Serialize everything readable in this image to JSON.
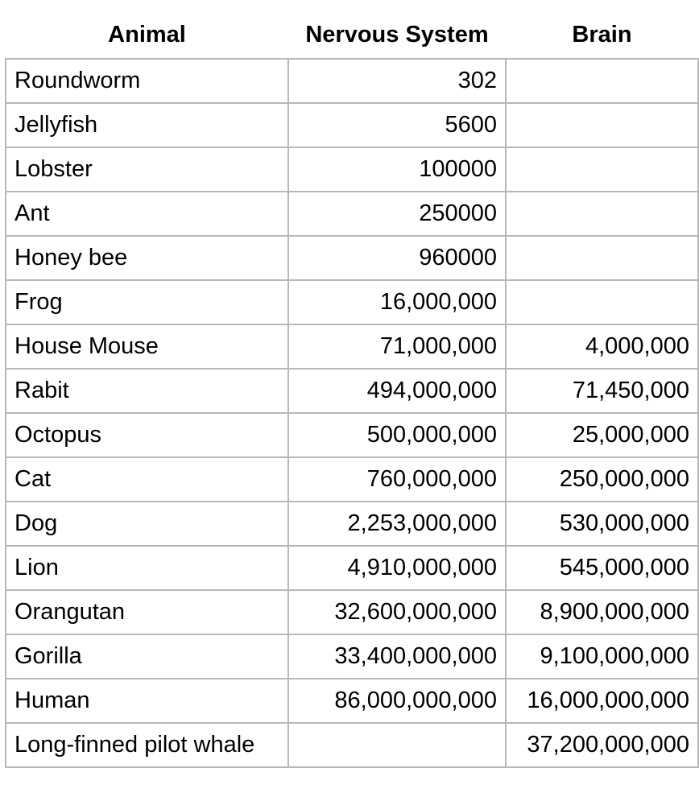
{
  "table": {
    "headers": [
      "Animal",
      "Nervous System",
      "Brain"
    ],
    "rows": [
      {
        "animal": "Roundworm",
        "nervous_system": "302",
        "brain": ""
      },
      {
        "animal": "Jellyfish",
        "nervous_system": "5600",
        "brain": ""
      },
      {
        "animal": "Lobster",
        "nervous_system": "100000",
        "brain": ""
      },
      {
        "animal": "Ant",
        "nervous_system": "250000",
        "brain": ""
      },
      {
        "animal": "Honey bee",
        "nervous_system": "960000",
        "brain": ""
      },
      {
        "animal": "Frog",
        "nervous_system": "16,000,000",
        "brain": ""
      },
      {
        "animal": "House Mouse",
        "nervous_system": "71,000,000",
        "brain": "4,000,000"
      },
      {
        "animal": "Rabit",
        "nervous_system": "494,000,000",
        "brain": "71,450,000"
      },
      {
        "animal": "Octopus",
        "nervous_system": "500,000,000",
        "brain": "25,000,000"
      },
      {
        "animal": "Cat",
        "nervous_system": "760,000,000",
        "brain": "250,000,000"
      },
      {
        "animal": "Dog",
        "nervous_system": "2,253,000,000",
        "brain": "530,000,000"
      },
      {
        "animal": "Lion",
        "nervous_system": "4,910,000,000",
        "brain": "545,000,000"
      },
      {
        "animal": "Orangutan",
        "nervous_system": "32,600,000,000",
        "brain": "8,900,000,000"
      },
      {
        "animal": "Gorilla",
        "nervous_system": "33,400,000,000",
        "brain": "9,100,000,000"
      },
      {
        "animal": "Human",
        "nervous_system": "86,000,000,000",
        "brain": "16,000,000,000"
      },
      {
        "animal": "Long-finned pilot whale",
        "nervous_system": "",
        "brain": "37,200,000,000"
      }
    ]
  }
}
